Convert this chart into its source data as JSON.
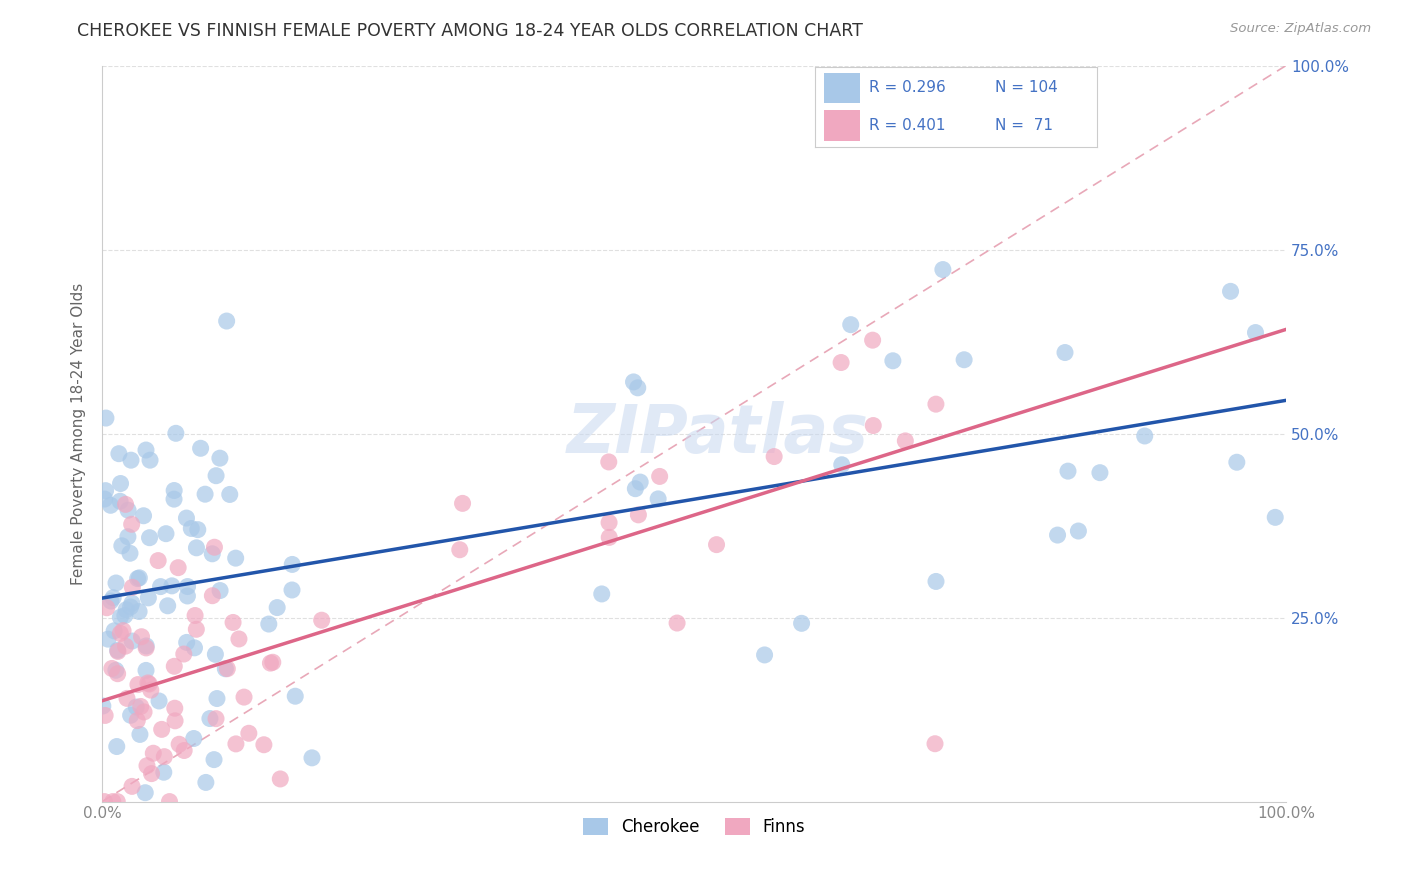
{
  "title": "CHEROKEE VS FINNISH FEMALE POVERTY AMONG 18-24 YEAR OLDS CORRELATION CHART",
  "source": "Source: ZipAtlas.com",
  "ylabel": "Female Poverty Among 18-24 Year Olds",
  "cherokee_color": "#a8c8e8",
  "finns_color": "#f0a8c0",
  "cherokee_line_color": "#2255aa",
  "finns_line_color": "#dd6688",
  "diagonal_color": "#e8a8b8",
  "watermark": "ZIPatlas",
  "legend_R_cherokee": "0.296",
  "legend_N_cherokee": "104",
  "legend_R_finns": "0.401",
  "legend_N_finns": " 71",
  "tick_label_color_x": "#888888",
  "tick_label_color_y": "#4472c4",
  "grid_color": "#e0e0e0",
  "cherokee_intercept": 0.265,
  "cherokee_slope": 0.3,
  "finns_intercept": 0.145,
  "finns_slope": 0.5
}
